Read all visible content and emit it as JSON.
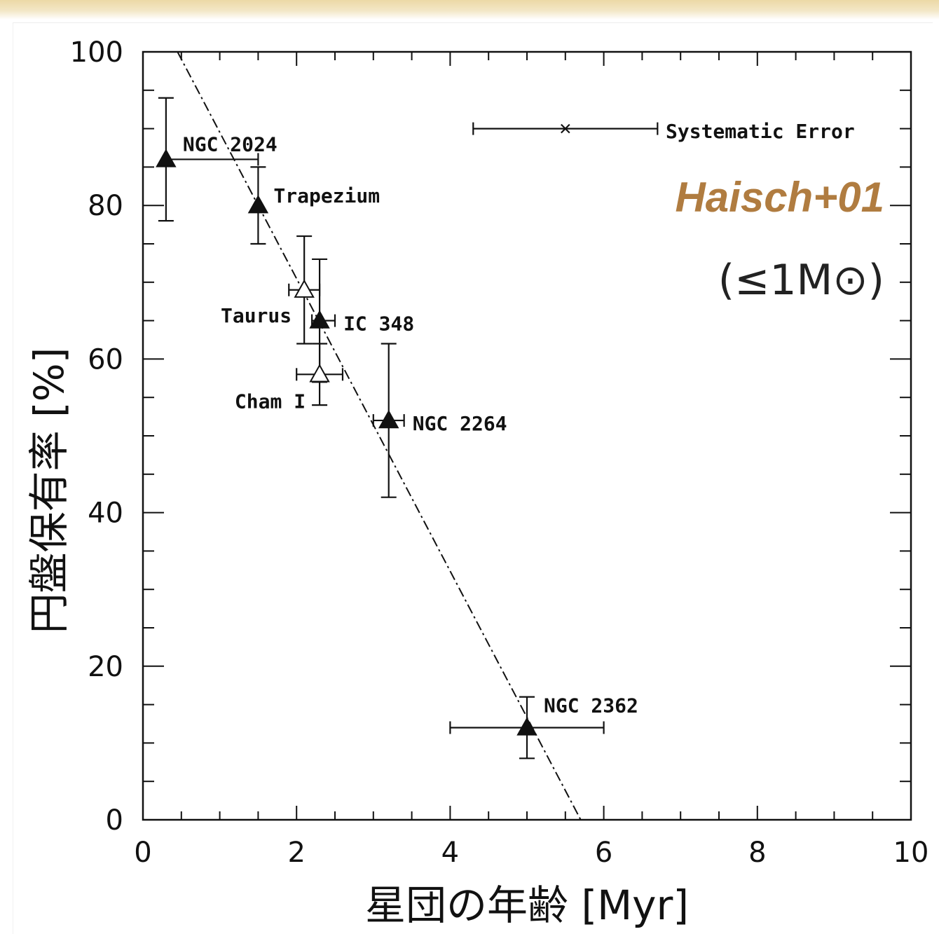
{
  "annotations": {
    "reference": "Haisch+01",
    "mass_limit": "(≤1M⊙)",
    "systematic_error_label": "Systematic Error"
  },
  "chart_data": {
    "type": "scatter",
    "xlabel": "星団の年齢 [Myr]",
    "ylabel": "円盤保有率 [%]",
    "xlim": [
      0,
      10
    ],
    "ylim": [
      0,
      100
    ],
    "xticks": [
      0,
      2,
      4,
      6,
      8,
      10
    ],
    "yticks": [
      0,
      20,
      40,
      60,
      80,
      100
    ],
    "grid": false,
    "series": [
      {
        "marker": "filled-triangle",
        "points": [
          {
            "label": "NGC 2024",
            "x": 0.3,
            "y": 86,
            "xerr": [
              0.3,
              1.5
            ],
            "yerr": [
              78,
              94
            ]
          },
          {
            "label": "Trapezium",
            "x": 1.5,
            "y": 80,
            "xerr": null,
            "yerr": [
              75,
              85
            ]
          },
          {
            "label": "IC 348",
            "x": 2.3,
            "y": 65,
            "xerr": [
              2.2,
              2.5
            ],
            "yerr": [
              57,
              73
            ]
          },
          {
            "label": "NGC 2264",
            "x": 3.2,
            "y": 52,
            "xerr": [
              3.0,
              3.4
            ],
            "yerr": [
              42,
              62
            ]
          },
          {
            "label": "NGC 2362",
            "x": 5.0,
            "y": 12,
            "xerr": [
              4.0,
              6.0
            ],
            "yerr": [
              8,
              16
            ]
          }
        ]
      },
      {
        "marker": "open-triangle",
        "points": [
          {
            "label": "Taurus",
            "x": 2.1,
            "y": 69,
            "xerr": [
              1.9,
              2.3
            ],
            "yerr": [
              62,
              76
            ]
          },
          {
            "label": "Cham I",
            "x": 2.3,
            "y": 58,
            "xerr": [
              2.0,
              2.6
            ],
            "yerr": [
              54,
              62
            ]
          }
        ]
      }
    ],
    "fit_line": {
      "style": "dash-dot",
      "x": [
        0.45,
        5.7
      ],
      "y": [
        100,
        0
      ]
    },
    "systematic_error": {
      "x": 5.5,
      "y": 90,
      "xerr": [
        4.3,
        6.7
      ]
    }
  }
}
